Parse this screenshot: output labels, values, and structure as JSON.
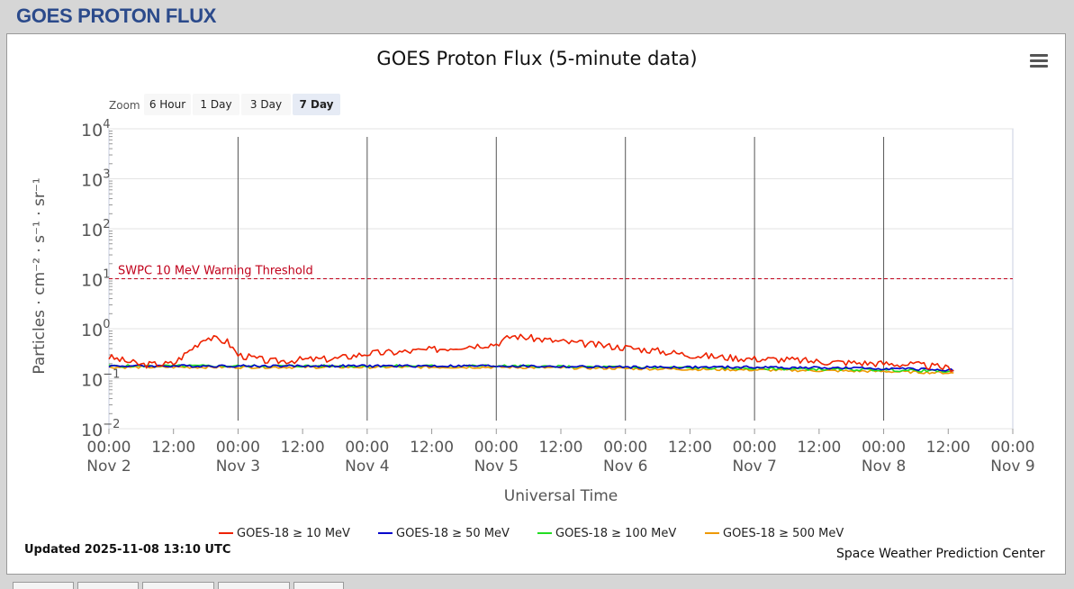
{
  "header": {
    "title": "GOES PROTON FLUX"
  },
  "zoom": {
    "label": "Zoom",
    "buttons": [
      "6 Hour",
      "1 Day",
      "3 Day",
      "7 Day"
    ],
    "active": "7 Day"
  },
  "footer": {
    "updated": "Updated 2025-11-08 13:10 UTC",
    "credit": "Space Weather Prediction Center"
  },
  "chart_data": {
    "type": "line",
    "title": "GOES Proton Flux (5-minute data)",
    "xlabel": "Universal Time",
    "ylabel": "Particles · cm⁻² · s⁻¹ · sr⁻¹",
    "yscale": "log",
    "ylim": [
      0.01,
      10000
    ],
    "y_ticks": [
      "10^-2",
      "10^-1",
      "10^0",
      "10^1",
      "10^2",
      "10^3",
      "10^4"
    ],
    "xlim": [
      "2025-11-02 00:00",
      "2025-11-09 00:00"
    ],
    "x_ticks": [
      {
        "time": "00:00",
        "date": "Nov 2"
      },
      {
        "time": "12:00",
        "date": ""
      },
      {
        "time": "00:00",
        "date": "Nov 3"
      },
      {
        "time": "12:00",
        "date": ""
      },
      {
        "time": "00:00",
        "date": "Nov 4"
      },
      {
        "time": "12:00",
        "date": ""
      },
      {
        "time": "00:00",
        "date": "Nov 5"
      },
      {
        "time": "12:00",
        "date": ""
      },
      {
        "time": "00:00",
        "date": "Nov 6"
      },
      {
        "time": "12:00",
        "date": ""
      },
      {
        "time": "00:00",
        "date": "Nov 7"
      },
      {
        "time": "12:00",
        "date": ""
      },
      {
        "time": "00:00",
        "date": "Nov 8"
      },
      {
        "time": "12:00",
        "date": ""
      },
      {
        "time": "00:00",
        "date": "Nov 9"
      }
    ],
    "day_boundaries": [
      "Nov 3",
      "Nov 4",
      "Nov 5",
      "Nov 6",
      "Nov 7",
      "Nov 8"
    ],
    "threshold": {
      "label": "SWPC 10 MeV Warning Threshold",
      "value": 10,
      "color": "#c0001a"
    },
    "grid": true,
    "legend_position": "bottom",
    "series": [
      {
        "name": "GOES-18 ≥ 10 MeV",
        "color": "#ee2200",
        "x": [
          "11-02 00:00",
          "11-02 06:00",
          "11-02 12:00",
          "11-02 18:00",
          "11-02 22:00",
          "11-03 00:00",
          "11-03 06:00",
          "11-03 12:00",
          "11-03 18:00",
          "11-04 00:00",
          "11-04 06:00",
          "11-04 12:00",
          "11-04 18:00",
          "11-05 00:00",
          "11-05 03:00",
          "11-05 08:00",
          "11-05 12:00",
          "11-05 18:00",
          "11-06 00:00",
          "11-06 06:00",
          "11-06 12:00",
          "11-06 18:00",
          "11-07 00:00",
          "11-07 06:00",
          "11-07 12:00",
          "11-07 18:00",
          "11-08 00:00",
          "11-08 06:00",
          "11-08 13:00"
        ],
        "values": [
          0.27,
          0.19,
          0.2,
          0.68,
          0.55,
          0.3,
          0.22,
          0.24,
          0.25,
          0.32,
          0.34,
          0.38,
          0.45,
          0.5,
          0.72,
          0.62,
          0.55,
          0.48,
          0.42,
          0.36,
          0.3,
          0.27,
          0.25,
          0.24,
          0.22,
          0.21,
          0.2,
          0.19,
          0.16
        ]
      },
      {
        "name": "GOES-18 ≥ 50 MeV",
        "color": "#0000cc",
        "x": [
          "11-02 00:00",
          "11-03 00:00",
          "11-04 00:00",
          "11-05 00:00",
          "11-06 00:00",
          "11-07 00:00",
          "11-08 00:00",
          "11-08 13:00"
        ],
        "values": [
          0.18,
          0.18,
          0.18,
          0.18,
          0.17,
          0.17,
          0.16,
          0.15
        ]
      },
      {
        "name": "GOES-18 ≥ 100 MeV",
        "color": "#22dd22",
        "x": [
          "11-02 00:00",
          "11-03 00:00",
          "11-04 00:00",
          "11-05 00:00",
          "11-06 00:00",
          "11-07 00:00",
          "11-08 00:00",
          "11-08 13:00"
        ],
        "values": [
          0.18,
          0.18,
          0.18,
          0.18,
          0.17,
          0.16,
          0.15,
          0.14
        ]
      },
      {
        "name": "GOES-18 ≥ 500 MeV",
        "color": "#ee9900",
        "x": [
          "11-02 00:00",
          "11-03 00:00",
          "11-04 00:00",
          "11-05 00:00",
          "11-06 00:00",
          "11-07 00:00",
          "11-08 00:00",
          "11-08 13:00"
        ],
        "values": [
          0.17,
          0.17,
          0.17,
          0.17,
          0.16,
          0.15,
          0.14,
          0.13
        ]
      }
    ]
  }
}
